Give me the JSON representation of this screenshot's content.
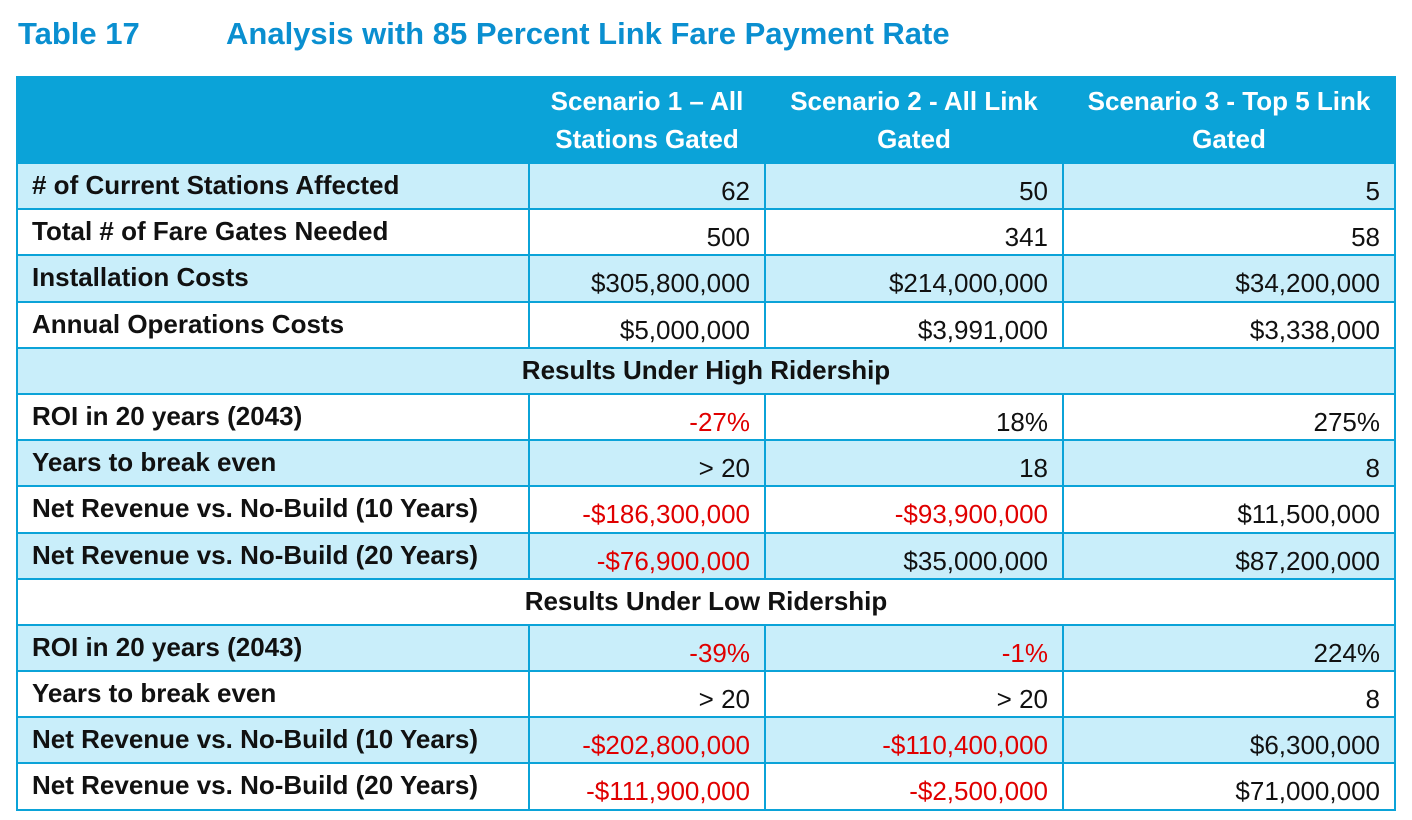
{
  "caption": {
    "number": "Table 17",
    "title": "Analysis with 85 Percent Link Fare Payment Rate"
  },
  "colors": {
    "header_bg": "#0ba3d8",
    "caption_text": "#0a8fd0",
    "stripe_bg": "#c9eefa",
    "negative_text": "#e00000"
  },
  "table": {
    "headers": [
      "",
      "Scenario 1 – All Stations Gated",
      "Scenario 2 - All Link Gated",
      "Scenario 3 - Top 5 Link Gated"
    ],
    "rows": [
      {
        "type": "data",
        "label": "# of Current Stations Affected",
        "values": [
          "62",
          "50",
          "5"
        ]
      },
      {
        "type": "data",
        "label": "Total # of Fare Gates Needed",
        "values": [
          "500",
          "341",
          "58"
        ]
      },
      {
        "type": "data",
        "label": "Installation Costs",
        "values": [
          "$305,800,000",
          "$214,000,000",
          "$34,200,000"
        ]
      },
      {
        "type": "data",
        "label": "Annual Operations Costs",
        "values": [
          "$5,000,000",
          "$3,991,000",
          "$3,338,000"
        ]
      },
      {
        "type": "section",
        "label": "Results Under High Ridership"
      },
      {
        "type": "data",
        "label": "ROI in 20 years (2043)",
        "values": [
          "-27%",
          "18%",
          "275%"
        ]
      },
      {
        "type": "data",
        "label": "Years to break even",
        "values": [
          "> 20",
          "18",
          "8"
        ]
      },
      {
        "type": "data",
        "label": "Net Revenue vs. No-Build (10 Years)",
        "values": [
          "-$186,300,000",
          "-$93,900,000",
          "$11,500,000"
        ]
      },
      {
        "type": "data",
        "label": "Net Revenue vs. No-Build (20 Years)",
        "values": [
          "-$76,900,000",
          "$35,000,000",
          "$87,200,000"
        ]
      },
      {
        "type": "section",
        "label": "Results Under Low Ridership"
      },
      {
        "type": "data",
        "label": "ROI in 20 years (2043)",
        "values": [
          "-39%",
          "-1%",
          "224%"
        ]
      },
      {
        "type": "data",
        "label": "Years to break even",
        "values": [
          "> 20",
          "> 20",
          "8"
        ]
      },
      {
        "type": "data",
        "label": "Net Revenue vs. No-Build (10 Years)",
        "values": [
          "-$202,800,000",
          "-$110,400,000",
          "$6,300,000"
        ]
      },
      {
        "type": "data",
        "label": "Net Revenue vs. No-Build (20 Years)",
        "values": [
          "-$111,900,000",
          "-$2,500,000",
          "$71,000,000"
        ]
      }
    ]
  }
}
